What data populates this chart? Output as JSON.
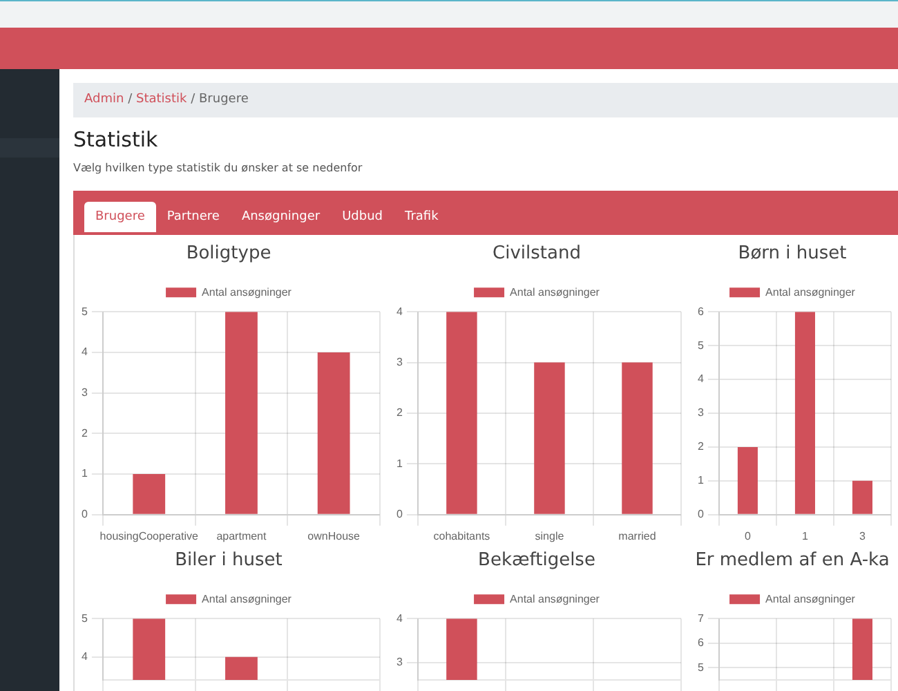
{
  "chart_data": [
    {
      "type": "bar",
      "title": "Boligtype",
      "categories": [
        "housingCooperative",
        "apartment",
        "ownHouse"
      ],
      "series": [
        {
          "name": "Antal ansøgninger",
          "color": "#d0505a",
          "values": [
            1,
            5,
            4
          ]
        }
      ],
      "ylim": [
        0,
        5
      ],
      "yticks": [
        0,
        1,
        2,
        3,
        4,
        5
      ],
      "grid": true,
      "legend": "top",
      "annotations": [
        "Admin",
        "Statistik",
        "Brugere",
        "Statistik",
        "Vælg hvilken type statistik du ønsker at se nedenfor",
        "Brugere",
        "Partnere",
        "Ansøgninger",
        "Udbud",
        "Trafik",
        "/"
      ]
    },
    {
      "type": "bar",
      "title": "Civilstand",
      "categories": [
        "cohabitants",
        "single",
        "married"
      ],
      "series": [
        {
          "name": "Antal ansøgninger",
          "color": "#d0505a",
          "values": [
            4,
            3,
            3
          ]
        }
      ],
      "ylim": [
        0,
        4
      ],
      "yticks": [
        0,
        1,
        2,
        3,
        4
      ],
      "grid": true,
      "legend": "top"
    },
    {
      "type": "bar",
      "title": "Børn i huset",
      "categories": [
        "0",
        "1",
        "3"
      ],
      "series": [
        {
          "name": "Antal ansøgninger",
          "color": "#d0505a",
          "values": [
            2,
            6,
            1
          ]
        }
      ],
      "ylim": [
        0,
        6
      ],
      "yticks": [
        0,
        1,
        2,
        3,
        4,
        5,
        6
      ],
      "grid": true,
      "legend": "top"
    },
    {
      "type": "bar",
      "title": "Biler i huset",
      "categories": [
        null,
        null,
        null
      ],
      "series": [
        {
          "name": "Antal ansøgninger",
          "color": "#d0505a",
          "values": [
            5,
            4,
            null
          ]
        }
      ],
      "ylim": [
        3.4,
        5
      ],
      "yticks": [
        4,
        5
      ],
      "grid": true,
      "legend": "top",
      "tick_labels": "y"
    },
    {
      "type": "bar",
      "title": "Bekæftigelse",
      "categories": [
        null,
        null,
        null
      ],
      "series": [
        {
          "name": "Antal ansøgninger",
          "color": "#d0505a",
          "values": [
            4,
            null,
            null
          ]
        }
      ],
      "ylim": [
        2.6,
        4
      ],
      "yticks": [
        3,
        4
      ],
      "grid": true,
      "legend": "top",
      "tick_labels": "y"
    },
    {
      "type": "bar",
      "title": "Er medlem af en A-ka",
      "categories": [
        null,
        null,
        null
      ],
      "series": [
        {
          "name": "Antal ansøgninger",
          "color": "#d0505a",
          "values": [
            null,
            null,
            7
          ]
        }
      ],
      "ylim": [
        4.5,
        7
      ],
      "yticks": [
        5,
        6,
        7
      ],
      "grid": true,
      "legend": "top",
      "tick_labels": "y"
    }
  ]
}
